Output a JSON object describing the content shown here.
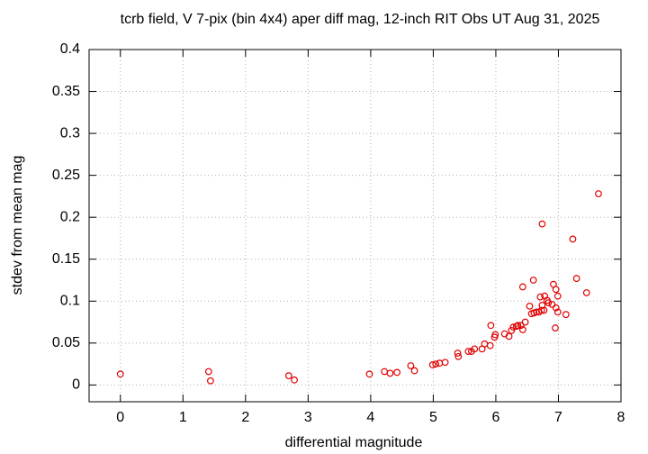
{
  "chart_data": {
    "type": "scatter",
    "title": "tcrb field, V 7-pix (bin 4x4) aper diff mag,  12-inch RIT Obs UT Aug 31, 2025",
    "x_label": "differential magnitude",
    "y_label": "stdev from mean mag",
    "color": "#e00000",
    "grid": true,
    "xlim": [
      -0.5,
      8
    ],
    "ylim": [
      -0.02,
      0.4
    ],
    "xticks": [
      0,
      1,
      2,
      3,
      4,
      5,
      6,
      7,
      8
    ],
    "yticks": [
      0,
      0.05,
      0.1,
      0.15,
      0.2,
      0.25,
      0.3,
      0.35,
      0.4
    ],
    "x": [
      0,
      1.41,
      1.44,
      2.69,
      2.78,
      3.98,
      4.22,
      4.31,
      4.42,
      4.64,
      4.7,
      4.99,
      5.04,
      5.1,
      5.19,
      5.39,
      5.4,
      5.56,
      5.61,
      5.66,
      5.78,
      5.82,
      5.91,
      5.92,
      5.98,
      5.99,
      6.14,
      6.21,
      6.25,
      6.28,
      6.33,
      6.35,
      6.4,
      6.43,
      6.47,
      6.43,
      6.54,
      6.57,
      6.6,
      6.61,
      6.65,
      6.69,
      6.71,
      6.73,
      6.74,
      6.77,
      6.74,
      6.78,
      6.82,
      6.84,
      6.9,
      6.92,
      6.95,
      6.96,
      6.96,
      6.99,
      6.99,
      7.12,
      7.23,
      7.29,
      7.45,
      7.64
    ],
    "values": [
      0.013,
      0.016,
      0.005,
      0.011,
      0.006,
      0.013,
      0.016,
      0.014,
      0.015,
      0.023,
      0.017,
      0.024,
      0.025,
      0.026,
      0.027,
      0.038,
      0.034,
      0.04,
      0.04,
      0.043,
      0.043,
      0.049,
      0.047,
      0.071,
      0.057,
      0.06,
      0.061,
      0.058,
      0.065,
      0.069,
      0.07,
      0.071,
      0.071,
      0.066,
      0.075,
      0.117,
      0.094,
      0.085,
      0.125,
      0.086,
      0.087,
      0.087,
      0.105,
      0.089,
      0.095,
      0.089,
      0.192,
      0.106,
      0.101,
      0.098,
      0.096,
      0.12,
      0.068,
      0.114,
      0.092,
      0.106,
      0.087,
      0.084,
      0.174,
      0.127,
      0.11,
      0.228
    ]
  }
}
